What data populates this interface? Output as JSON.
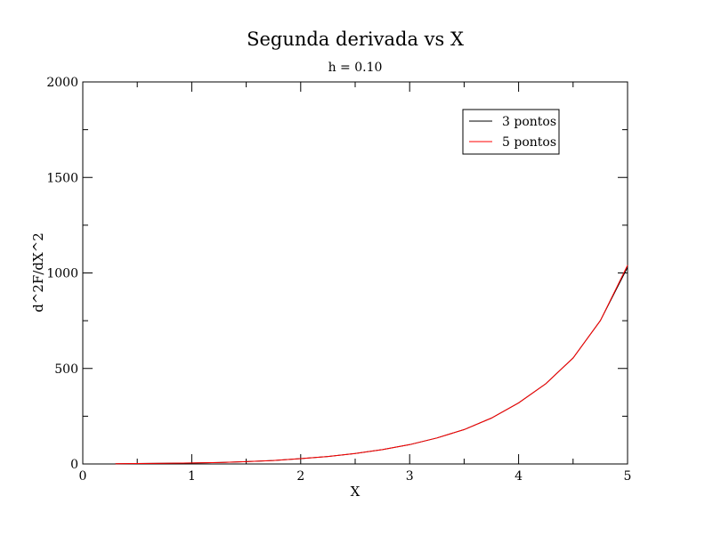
{
  "chart_data": {
    "type": "line",
    "title": "Segunda derivada vs X",
    "subtitle": "h = 0.10",
    "xlabel": "X",
    "ylabel": "d^2F/dX^2",
    "xlim": [
      0,
      5
    ],
    "ylim": [
      0,
      2000
    ],
    "x_ticks": [
      0,
      1,
      2,
      3,
      4,
      5
    ],
    "y_ticks": [
      0,
      500,
      1000,
      1500,
      2000
    ],
    "grid": false,
    "legend_position": "top-right",
    "x": [
      0.3,
      0.5,
      0.75,
      1.0,
      1.25,
      1.5,
      1.75,
      2.0,
      2.25,
      2.5,
      2.75,
      3.0,
      3.25,
      3.5,
      3.75,
      4.0,
      4.25,
      4.5,
      4.75,
      5.0
    ],
    "series": [
      {
        "name": "3 pontos",
        "color": "#000000",
        "values": [
          1.6,
          2.2,
          3.3,
          4.9,
          7.6,
          12,
          18,
          28,
          39,
          55,
          75,
          101,
          136,
          180,
          240,
          320,
          420,
          555,
          750,
          1030
        ]
      },
      {
        "name": "5 pontos",
        "color": "#ff0000",
        "values": [
          1.6,
          2.2,
          3.3,
          4.9,
          7.6,
          12,
          18,
          28,
          39,
          55,
          75,
          101,
          136,
          180,
          240,
          320,
          420,
          555,
          750,
          1040
        ]
      }
    ]
  }
}
